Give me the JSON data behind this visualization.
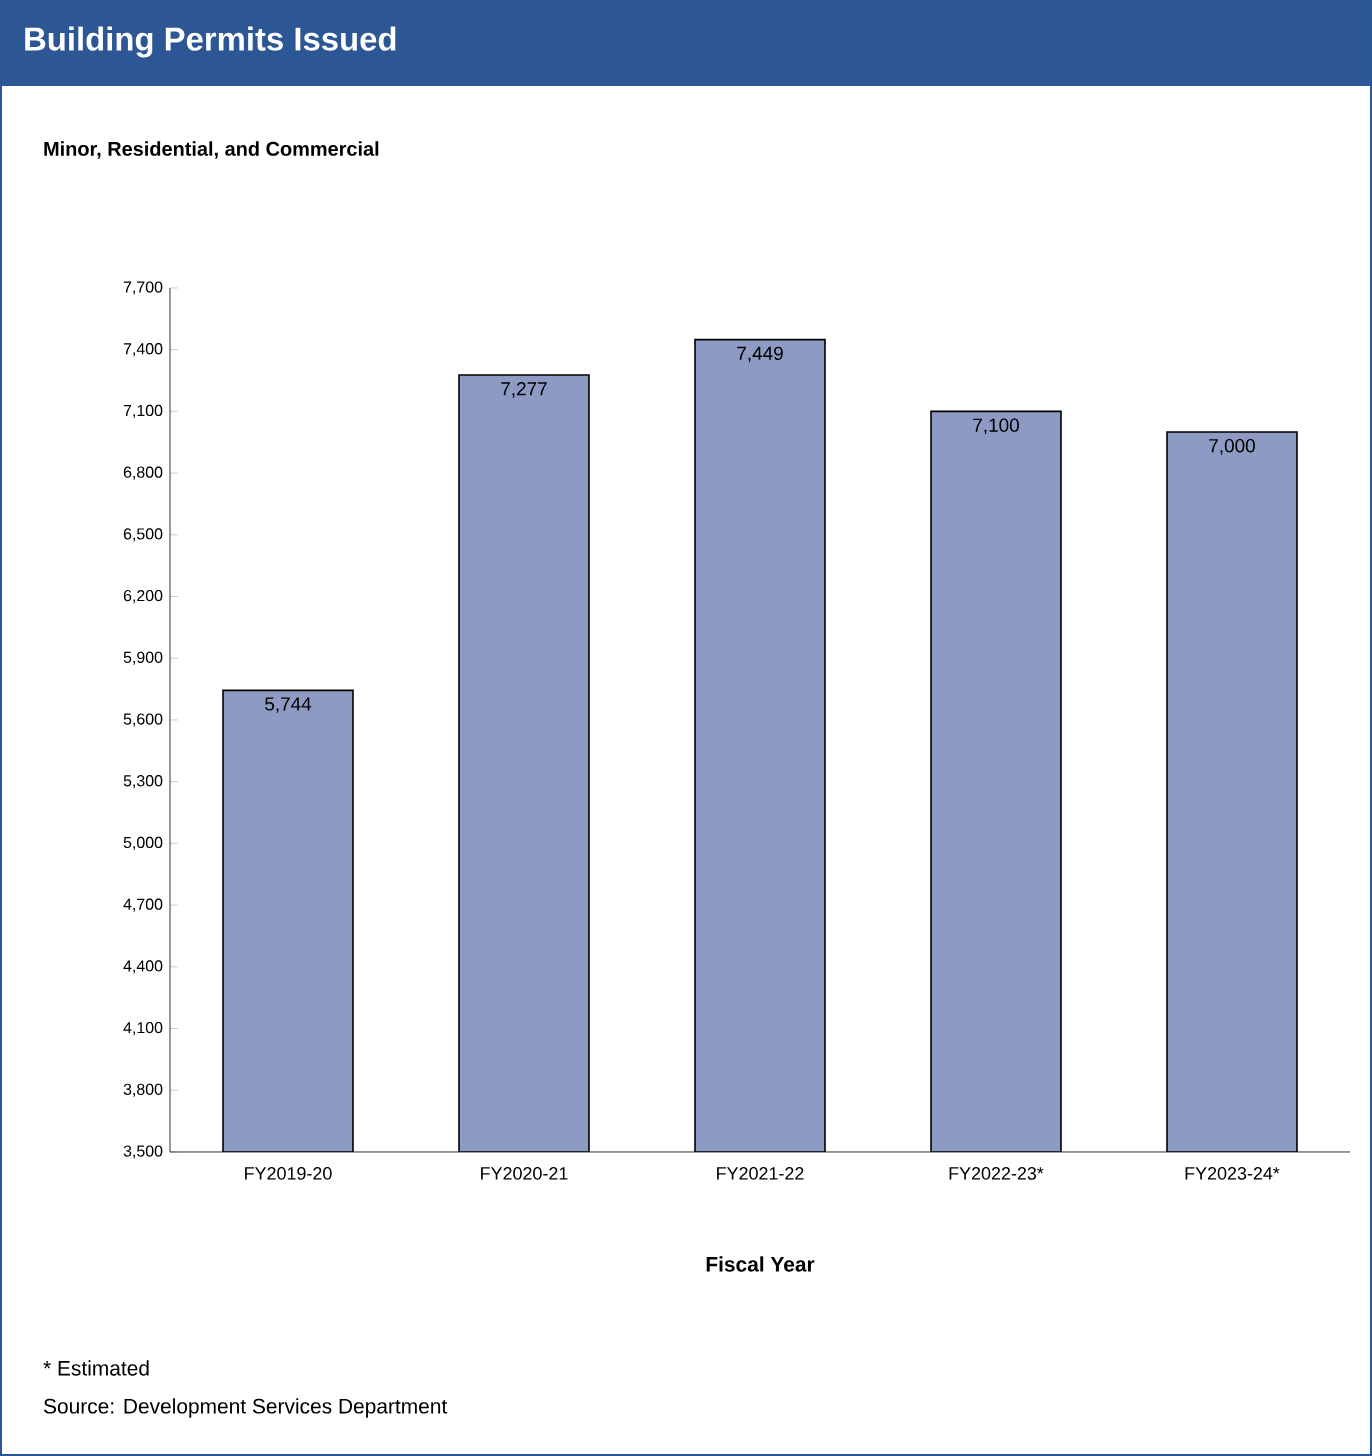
{
  "chart_data": {
    "type": "bar",
    "title": "Building Permits Issued",
    "subtitle": "Minor, Residential, and Commercial",
    "xlabel": "Fiscal Year",
    "categories": [
      "FY2019-20",
      "FY2020-21",
      "FY2021-22",
      "FY2022-23*",
      "FY2023-24*"
    ],
    "values": [
      5744,
      7277,
      7449,
      7100,
      7000
    ],
    "value_labels": [
      "5,744",
      "7,277",
      "7,449",
      "7,100",
      "7,000"
    ],
    "color": "#8d9bc4",
    "ylim": [
      3500,
      7700
    ],
    "yticks": [
      {
        "value": 3500,
        "label": "3,500"
      },
      {
        "value": 3800,
        "label": "3,800"
      },
      {
        "value": 4100,
        "label": "4,100"
      },
      {
        "value": 4400,
        "label": "4,400"
      },
      {
        "value": 4700,
        "label": "4,700"
      },
      {
        "value": 5000,
        "label": "5,000"
      },
      {
        "value": 5300,
        "label": "5,300"
      },
      {
        "value": 5600,
        "label": "5,600"
      },
      {
        "value": 5900,
        "label": "5,900"
      },
      {
        "value": 6200,
        "label": "6,200"
      },
      {
        "value": 6500,
        "label": "6,500"
      },
      {
        "value": 6800,
        "label": "6,800"
      },
      {
        "value": 7100,
        "label": "7,100"
      },
      {
        "value": 7400,
        "label": "7,400"
      },
      {
        "value": 7700,
        "label": "7,700"
      }
    ],
    "grid": false,
    "annotations": [
      "* Estimated",
      "Source: Development Services Department"
    ]
  }
}
